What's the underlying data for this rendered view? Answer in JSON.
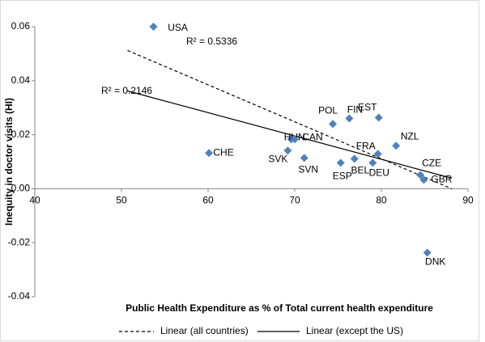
{
  "chart_data": {
    "type": "scatter",
    "xlabel": "Public Health Expenditure as % of Total current health expenditure",
    "ylabel": "Inequity in doctor visits (HI)",
    "xlim": [
      40,
      90
    ],
    "xticks": [
      40,
      50,
      60,
      70,
      80,
      90
    ],
    "ylim": [
      -0.04,
      0.06
    ],
    "yticks": [
      0.06,
      0.04,
      0.02,
      {
        "value": 0,
        "label": "0.00"
      },
      -0.02,
      -0.04
    ],
    "points": {
      "color": "#4f81bd",
      "labels": [
        "USA",
        "CHE",
        "SVK",
        "HUN",
        "CAN",
        "SVN",
        "POL",
        "ESP",
        "BEL",
        "FIN",
        "EST",
        "FRA",
        "DEU",
        "NZL",
        "CZE",
        "GBR",
        "DNK"
      ],
      "x": [
        53.7,
        60.1,
        69.2,
        69.6,
        70.0,
        71.1,
        74.4,
        75.3,
        76.9,
        76.3,
        79.7,
        79.6,
        79.0,
        81.7,
        84.5,
        84.9,
        85.3
      ],
      "values": [
        0.06,
        0.0132,
        0.0141,
        0.0183,
        0.0183,
        0.0114,
        0.024,
        0.0096,
        0.0111,
        0.026,
        0.0263,
        0.0129,
        0.0096,
        0.0159,
        0.0051,
        0.0033,
        -0.0237
      ]
    },
    "trendlines": [
      {
        "name": "Linear (all countries)",
        "color": "#000000",
        "dashed": true,
        "x": [
          50.7,
          88.1
        ],
        "values": [
          0.0512,
          0.0
        ]
      },
      {
        "name": "Linear (except the US)",
        "color": "#000000",
        "dashed": false,
        "x": [
          50.7,
          88.1
        ],
        "values": [
          0.0362,
          0.0039
        ]
      }
    ],
    "annotations": [
      "R² = 0.5336",
      "R² = 0.2146"
    ]
  }
}
